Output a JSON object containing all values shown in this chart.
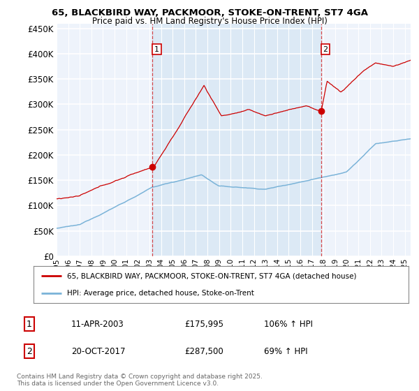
{
  "title_line1": "65, BLACKBIRD WAY, PACKMOOR, STOKE-ON-TRENT, ST7 4GA",
  "title_line2": "Price paid vs. HM Land Registry's House Price Index (HPI)",
  "ylim": [
    0,
    460000
  ],
  "xlim_start": 1995.0,
  "xlim_end": 2025.5,
  "yticks": [
    0,
    50000,
    100000,
    150000,
    200000,
    250000,
    300000,
    350000,
    400000,
    450000
  ],
  "ytick_labels": [
    "£0",
    "£50K",
    "£100K",
    "£150K",
    "£200K",
    "£250K",
    "£300K",
    "£350K",
    "£400K",
    "£450K"
  ],
  "hpi_color": "#7ab3d8",
  "price_color": "#cc0000",
  "marker1_x": 2003.27,
  "marker1_y": 175995,
  "marker2_x": 2017.8,
  "marker2_y": 287500,
  "vline_color": "#cc0000",
  "shade_color": "#dce9f5",
  "background_color": "#eef3fb",
  "grid_color": "#ffffff",
  "legend_label1": "65, BLACKBIRD WAY, PACKMOOR, STOKE-ON-TRENT, ST7 4GA (detached house)",
  "legend_label2": "HPI: Average price, detached house, Stoke-on-Trent",
  "table_row1": [
    "1",
    "11-APR-2003",
    "£175,995",
    "106% ↑ HPI"
  ],
  "table_row2": [
    "2",
    "20-OCT-2017",
    "£287,500",
    "69% ↑ HPI"
  ],
  "footnote": "Contains HM Land Registry data © Crown copyright and database right 2025.\nThis data is licensed under the Open Government Licence v3.0.",
  "xtick_years": [
    1995,
    1996,
    1997,
    1998,
    1999,
    2000,
    2001,
    2002,
    2003,
    2004,
    2005,
    2006,
    2007,
    2008,
    2009,
    2010,
    2011,
    2012,
    2013,
    2014,
    2015,
    2016,
    2017,
    2018,
    2019,
    2020,
    2021,
    2022,
    2023,
    2024,
    2025
  ]
}
